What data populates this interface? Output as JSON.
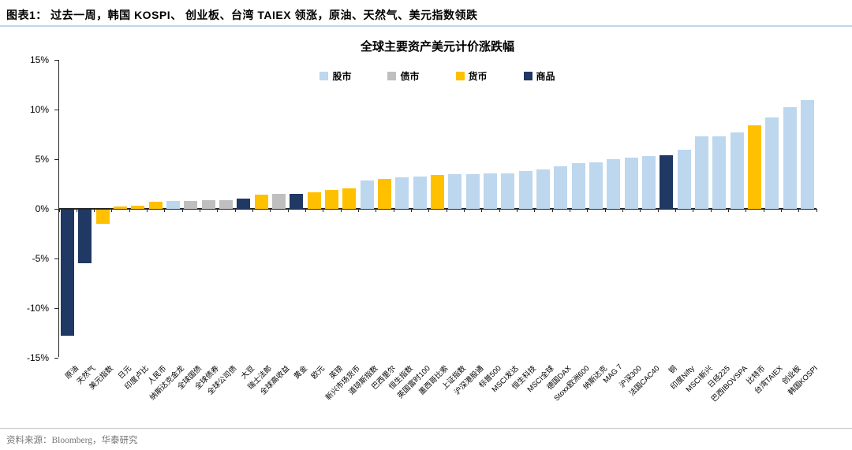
{
  "header": {
    "title": "图表1：  过去一周，韩国 KOSPI、 创业板、台湾 TAIEX 领涨，原油、天然气、美元指数领跌"
  },
  "footer": {
    "source": "资料来源：Bloomberg，华泰研究"
  },
  "chart_data": {
    "type": "bar",
    "title": "全球主要资产美元计价涨跌幅",
    "ylabel": "",
    "xlabel": "",
    "ylim": [
      -15,
      15
    ],
    "ytick_step": 5,
    "yticks": [
      {
        "value": 15,
        "label": "15%"
      },
      {
        "value": 10,
        "label": "10%"
      },
      {
        "value": 5,
        "label": "5%"
      },
      {
        "value": 0,
        "label": "0%"
      },
      {
        "value": -5,
        "label": "-5%"
      },
      {
        "value": -10,
        "label": "-10%"
      },
      {
        "value": -15,
        "label": "-15%"
      }
    ],
    "grid": false,
    "legend_position": "top",
    "legend": [
      {
        "label": "股市",
        "color": "#BDD7EE"
      },
      {
        "label": "债市",
        "color": "#BFBFBF"
      },
      {
        "label": "货币",
        "color": "#FFC000"
      },
      {
        "label": "商品",
        "color": "#1F3864"
      }
    ],
    "points": [
      {
        "label": "原油",
        "series": "商品",
        "value": -12.7
      },
      {
        "label": "天然气",
        "series": "商品",
        "value": -5.4
      },
      {
        "label": "美元指数",
        "series": "货币",
        "value": -1.4
      },
      {
        "label": "日元",
        "series": "货币",
        "value": 0.2
      },
      {
        "label": "印度卢比",
        "series": "货币",
        "value": 0.3
      },
      {
        "label": "人民币",
        "series": "货币",
        "value": 0.7
      },
      {
        "label": "纳斯达克金龙",
        "series": "股市",
        "value": 0.8
      },
      {
        "label": "全球国债",
        "series": "债市",
        "value": 0.8
      },
      {
        "label": "全球债券",
        "series": "债市",
        "value": 0.9
      },
      {
        "label": "全球公司债",
        "series": "债市",
        "value": 0.9
      },
      {
        "label": "大豆",
        "series": "商品",
        "value": 1.0
      },
      {
        "label": "瑞士法郎",
        "series": "货币",
        "value": 1.4
      },
      {
        "label": "全球高收益",
        "series": "债市",
        "value": 1.5
      },
      {
        "label": "黄金",
        "series": "商品",
        "value": 1.5
      },
      {
        "label": "欧元",
        "series": "货币",
        "value": 1.7
      },
      {
        "label": "英镑",
        "series": "货币",
        "value": 1.9
      },
      {
        "label": "新兴市场货币",
        "series": "货币",
        "value": 2.1
      },
      {
        "label": "道琼斯指数",
        "series": "股市",
        "value": 2.9
      },
      {
        "label": "巴西里尔",
        "series": "货币",
        "value": 3.0
      },
      {
        "label": "恒生指数",
        "series": "股市",
        "value": 3.2
      },
      {
        "label": "英国富时100",
        "series": "股市",
        "value": 3.3
      },
      {
        "label": "墨西哥比索",
        "series": "货币",
        "value": 3.4
      },
      {
        "label": "上证指数",
        "series": "股市",
        "value": 3.5
      },
      {
        "label": "沪深港股通",
        "series": "股市",
        "value": 3.5
      },
      {
        "label": "标普500",
        "series": "股市",
        "value": 3.6
      },
      {
        "label": "MSCI发达",
        "series": "股市",
        "value": 3.6
      },
      {
        "label": "恒生科技",
        "series": "股市",
        "value": 3.8
      },
      {
        "label": "MSCI全球",
        "series": "股市",
        "value": 4.0
      },
      {
        "label": "德国DAX",
        "series": "股市",
        "value": 4.3
      },
      {
        "label": "Stoxx欧洲600",
        "series": "股市",
        "value": 4.6
      },
      {
        "label": "纳斯达克",
        "series": "股市",
        "value": 4.7
      },
      {
        "label": "MAG 7",
        "series": "股市",
        "value": 5.0
      },
      {
        "label": "沪深300",
        "series": "股市",
        "value": 5.2
      },
      {
        "label": "法国CAC40",
        "series": "股市",
        "value": 5.3
      },
      {
        "label": "铜",
        "series": "商品",
        "value": 5.4
      },
      {
        "label": "印度Nifty",
        "series": "股市",
        "value": 6.0
      },
      {
        "label": "MSCI新兴",
        "series": "股市",
        "value": 7.3
      },
      {
        "label": "日经225",
        "series": "股市",
        "value": 7.3
      },
      {
        "label": "巴西IBOVSPA",
        "series": "股市",
        "value": 7.7
      },
      {
        "label": "比特币",
        "series": "货币",
        "value": 8.4
      },
      {
        "label": "台湾TAIEX",
        "series": "股市",
        "value": 9.2
      },
      {
        "label": "创业板",
        "series": "股市",
        "value": 10.3
      },
      {
        "label": "韩国KOSPI",
        "series": "股市",
        "value": 11.0
      }
    ]
  }
}
